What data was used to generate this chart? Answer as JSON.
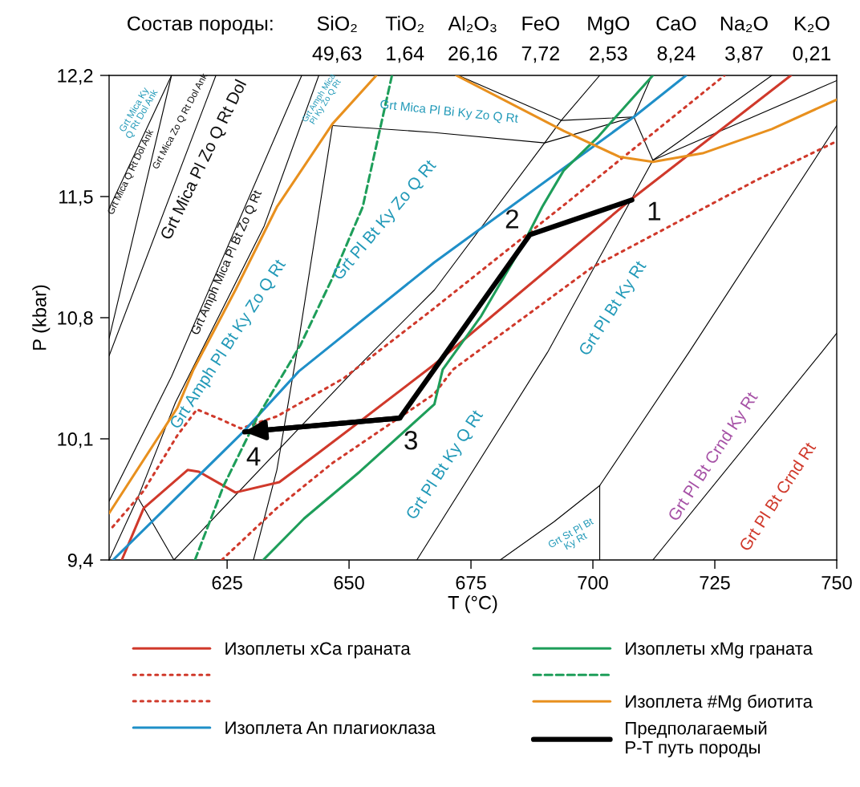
{
  "chart_data": {
    "type": "line",
    "xlabel": "T (°C)",
    "ylabel": "P (kbar)",
    "xlim": [
      600.8,
      750
    ],
    "ylim": [
      9.4,
      12.2
    ],
    "xticks": [
      625,
      650,
      675,
      700,
      725,
      750
    ],
    "yticks": [
      {
        "value": 9.4,
        "label": "9,4"
      },
      {
        "value": 10.1,
        "label": "10,1"
      },
      {
        "value": 10.8,
        "label": "10,8"
      },
      {
        "value": 11.5,
        "label": "11,5"
      },
      {
        "value": 12.2,
        "label": "12,2"
      }
    ],
    "legend": "bottom",
    "series": [
      {
        "color": "#000000",
        "x": [
          600.8,
          613.6
        ],
        "values": [
          11.43,
          12.2
        ]
      },
      {
        "color": "#000000",
        "x": [
          600.8,
          613.6
        ],
        "values": [
          10.68,
          12.2
        ]
      },
      {
        "color": "#000000",
        "x": [
          600.8,
          622.7
        ],
        "values": [
          10.58,
          12.2
        ]
      },
      {
        "color": "#000000",
        "x": [
          600.8,
          613.6,
          640.3
        ],
        "values": [
          9.74,
          10.46,
          12.2
        ]
      },
      {
        "color": "#000000",
        "x": [
          606.7,
          614.4,
          632.6,
          643.8
        ],
        "values": [
          9.76,
          10.31,
          11.33,
          12.2
        ]
      },
      {
        "color": "#000000",
        "x": [
          646.6,
          639.3,
          635.2,
          630.4
        ],
        "values": [
          11.91,
          10.6,
          9.92,
          9.4
        ]
      },
      {
        "color": "#000000",
        "x": [
          646.6,
          667.5,
          690.1,
          708.4
        ],
        "values": [
          11.91,
          11.87,
          11.81,
          11.96
        ]
      },
      {
        "color": "#000000",
        "x": [
          614.1,
          650.5,
          667.5,
          690.1,
          693.5,
          701.4
        ],
        "values": [
          9.4,
          10.48,
          10.96,
          11.81,
          11.94,
          12.2
        ]
      },
      {
        "color": "#000000",
        "x": [
          672.4,
          693.5,
          708.4
        ],
        "values": [
          12.2,
          11.94,
          11.96
        ]
      },
      {
        "color": "#000000",
        "x": [
          708.4,
          712.3
        ],
        "values": [
          11.96,
          11.71
        ]
      },
      {
        "color": "#000000",
        "x": [
          708.4,
          712.1
        ],
        "values": [
          11.96,
          12.2
        ]
      },
      {
        "color": "#000000",
        "x": [
          663.9,
          690.7,
          712.3,
          736.7
        ],
        "values": [
          9.4,
          10.6,
          11.71,
          12.2
        ]
      },
      {
        "color": "#000000",
        "x": [
          712.3,
          750
        ],
        "values": [
          11.71,
          12.17
        ]
      },
      {
        "color": "#000000",
        "x": [
          681.0,
          692.0,
          701.4,
          719.7,
          750
        ],
        "values": [
          9.4,
          9.62,
          9.83,
          10.6,
          11.91
        ]
      },
      {
        "color": "#000000",
        "x": [
          701.4,
          701.4
        ],
        "values": [
          9.83,
          9.4
        ]
      },
      {
        "color": "#000000",
        "x": [
          712.3,
          746.9,
          750
        ],
        "values": [
          9.4,
          10.6,
          10.71
        ]
      },
      {
        "color": "#000000",
        "x": [
          600.8,
          606.7,
          614.1
        ],
        "values": [
          9.4,
          9.76,
          9.4
        ]
      },
      {
        "name": "Изоплеты xCa граната",
        "color": "#d0392b",
        "line_style": "solid",
        "x": [
          603.4,
          607.9,
          616.9,
          619.2,
          626.7,
          635.7,
          643.8,
          652.2,
          667.5,
          707.7,
          740.6
        ],
        "values": [
          9.4,
          9.7,
          9.92,
          9.91,
          9.79,
          9.85,
          10.02,
          10.2,
          10.53,
          11.48,
          12.2
        ]
      },
      {
        "color": "#d0392b",
        "line_style": "dotted",
        "x": [
          601.5,
          607.9,
          614.8,
          618.8,
          623.9,
          627.8,
          635.2,
          648.9,
          666.8,
          695.8,
          727.0
        ],
        "values": [
          9.59,
          9.8,
          10.12,
          10.27,
          10.21,
          10.16,
          10.23,
          10.45,
          10.84,
          11.49,
          12.2
        ]
      },
      {
        "color": "#d0392b",
        "line_style": "dotted",
        "x": [
          623.9,
          635.2,
          646.6,
          667.5,
          671.3,
          699.8,
          733.9,
          750
        ],
        "values": [
          9.4,
          9.7,
          9.96,
          10.36,
          10.5,
          11.09,
          11.6,
          11.82
        ]
      },
      {
        "name": "Изоплета An плагиоклаза",
        "color": "#1f8fc8",
        "line_style": "solid",
        "x": [
          601.6,
          628.3,
          639.7,
          667.5,
          708.4,
          719.1
        ],
        "values": [
          9.4,
          10.14,
          10.49,
          11.12,
          11.96,
          12.2
        ]
      },
      {
        "name": "Изоплеты xMg граната",
        "color": "#1e9e5a",
        "line_style": "solid",
        "x": [
          632.4,
          640.8,
          652.2,
          667.5,
          669.2,
          677.1,
          685.6,
          689.6,
          694.0,
          700.9,
          712.3
        ],
        "values": [
          9.4,
          9.64,
          9.91,
          10.3,
          10.5,
          10.81,
          11.22,
          11.44,
          11.65,
          11.84,
          12.2
        ]
      },
      {
        "color": "#1e9e5a",
        "line_style": "dashed",
        "x": [
          618.4,
          624.3,
          631.3,
          640.0,
          646.6,
          652.8,
          658.8
        ],
        "values": [
          9.4,
          9.83,
          10.23,
          10.64,
          11.03,
          11.44,
          12.2
        ]
      },
      {
        "name": "Изоплета #Mg биотита",
        "color": "#e8901e",
        "line_style": "solid",
        "x": [
          600.8,
          614.8,
          618.1,
          626.7,
          635.2,
          646.6,
          655.6,
          null,
          672.0,
          694.0,
          705.4,
          712.3,
          722.5,
          736.7,
          750
        ],
        "values": [
          9.67,
          10.28,
          10.5,
          10.96,
          11.44,
          11.92,
          12.2,
          null,
          12.2,
          11.88,
          11.73,
          11.7,
          11.75,
          11.89,
          12.06
        ]
      },
      {
        "name": "Предполагаемый\nP-T путь породы",
        "color": "#000000",
        "x": [
          708.0,
          687.1,
          660.4,
          628.6
        ],
        "values": [
          11.48,
          11.28,
          10.22,
          10.14
        ]
      }
    ],
    "annotations": [
      "Состав породы:",
      "SiO₂",
      "49,63",
      "TiO₂",
      "1,64",
      "Al₂O₃",
      "26,16",
      "FeO",
      "7,72",
      "MgO",
      "2,53",
      "CaO",
      "8,24",
      "Na₂O",
      "3,87",
      "K₂O",
      "0,21",
      "Grt Mica Ky\nQ Rt Dol Ank",
      "Grt Mica Q Rt Dol Ank",
      "Grt Mica Zo Q Rt Dol Ank",
      "Grt Mica Pl Zo Q Rt Dol",
      "Grt Amph Mica Pl Bt Zo Q Rt",
      "Grt Amph Mica\nPl Ky Zo Q Rt",
      "Grt Mica Pl Bi Ky Zo Q Rt",
      "Grt Amph Pl Bt Ky Zo Q Rt",
      "Grt Pl Bt Ky Zo Q Rt",
      "Grt Pl Bt Ky Q Rt",
      "Grt Pl Bt Ky Rt",
      "Grt Pl Bt Crnd Ky Rt",
      "Grt Pl Bt Crnd Rt",
      "Grt St Pl Bt\nKy Rt",
      {
        "text": "1",
        "x": 708.0,
        "y": 11.48
      },
      {
        "text": "2",
        "x": 687.1,
        "y": 11.28
      },
      {
        "text": "3",
        "x": 660.4,
        "y": 10.22
      },
      {
        "text": "4",
        "x": 628.6,
        "y": 10.14
      }
    ]
  }
}
